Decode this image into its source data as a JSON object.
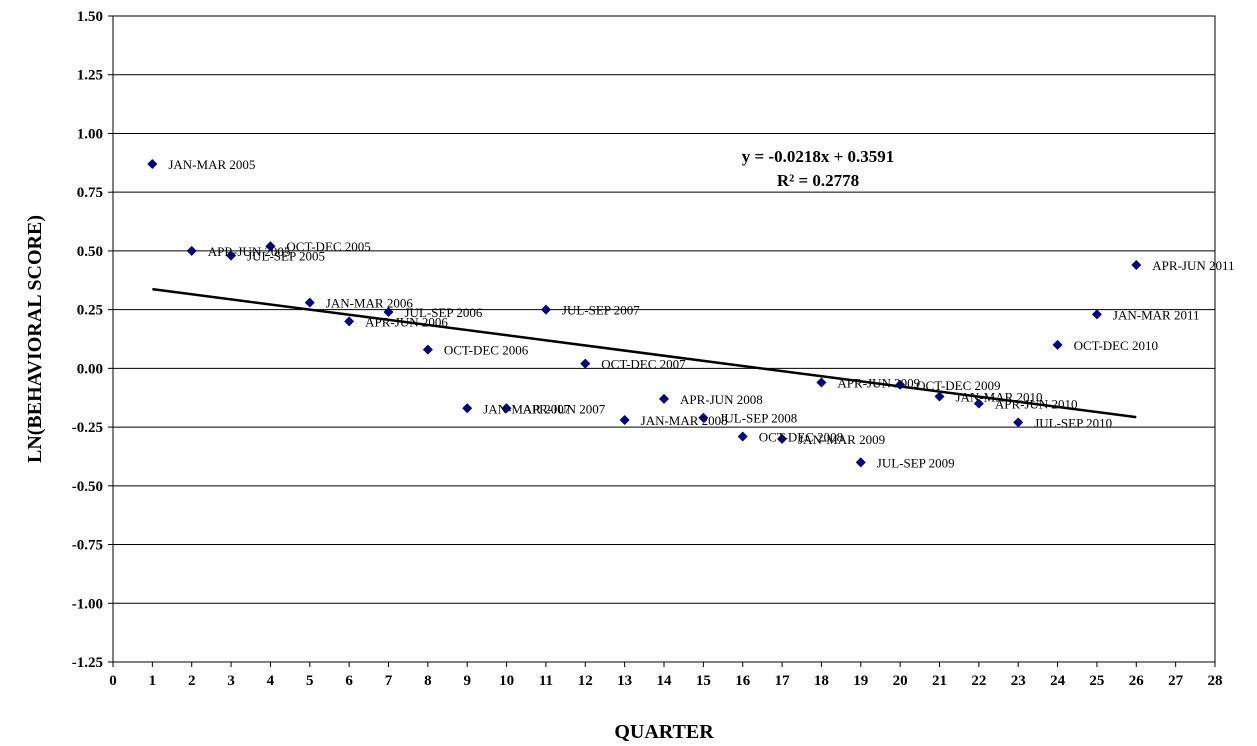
{
  "chart_data": {
    "type": "scatter",
    "xlabel": "QUARTER",
    "ylabel": "LN(BEHAVIORAL SCORE)",
    "xlim": [
      0,
      28
    ],
    "ylim": [
      -1.25,
      1.5
    ],
    "x_ticks": [
      "0",
      "1",
      "2",
      "3",
      "4",
      "5",
      "6",
      "7",
      "8",
      "9",
      "10",
      "11",
      "12",
      "13",
      "14",
      "15",
      "16",
      "17",
      "18",
      "19",
      "20",
      "21",
      "22",
      "23",
      "24",
      "25",
      "26",
      "27",
      "28"
    ],
    "y_ticks": [
      "1.50",
      "1.25",
      "1.00",
      "0.75",
      "0.50",
      "0.25",
      "0.00",
      "-0.25",
      "-0.50",
      "-0.75",
      "-1.00",
      "-1.25"
    ],
    "grid": "horizontal",
    "marker_color": "#000080",
    "points": [
      {
        "x": 1,
        "y": 0.87,
        "label": "JAN-MAR 2005"
      },
      {
        "x": 2,
        "y": 0.5,
        "label": "APR-JUN 2005"
      },
      {
        "x": 3,
        "y": 0.48,
        "label": "JUL-SEP 2005"
      },
      {
        "x": 4,
        "y": 0.52,
        "label": "OCT-DEC 2005"
      },
      {
        "x": 5,
        "y": 0.28,
        "label": "JAN-MAR 2006"
      },
      {
        "x": 6,
        "y": 0.2,
        "label": "APR-JUN 2006"
      },
      {
        "x": 7,
        "y": 0.24,
        "label": "JUL-SEP 2006"
      },
      {
        "x": 8,
        "y": 0.08,
        "label": "OCT-DEC 2006"
      },
      {
        "x": 9,
        "y": -0.17,
        "label": "JAN-MAR 2007"
      },
      {
        "x": 10,
        "y": -0.17,
        "label": "APR-JUN 2007"
      },
      {
        "x": 11,
        "y": 0.25,
        "label": "JUL-SEP 2007"
      },
      {
        "x": 12,
        "y": 0.02,
        "label": "OCT-DEC 2007"
      },
      {
        "x": 13,
        "y": -0.22,
        "label": "JAN-MAR 2008"
      },
      {
        "x": 14,
        "y": -0.13,
        "label": "APR-JUN 2008"
      },
      {
        "x": 15,
        "y": -0.21,
        "label": "JUL-SEP 2008"
      },
      {
        "x": 16,
        "y": -0.29,
        "label": "OCT-DEC 2008"
      },
      {
        "x": 17,
        "y": -0.3,
        "label": "JAN-MAR 2009"
      },
      {
        "x": 18,
        "y": -0.06,
        "label": "APR-JUN 2009"
      },
      {
        "x": 19,
        "y": -0.4,
        "label": "JUL-SEP 2009"
      },
      {
        "x": 20,
        "y": -0.07,
        "label": "OCT-DEC 2009"
      },
      {
        "x": 21,
        "y": -0.12,
        "label": "JAN-MAR 2010"
      },
      {
        "x": 22,
        "y": -0.15,
        "label": "APR-JUN 2010"
      },
      {
        "x": 23,
        "y": -0.23,
        "label": "JUL-SEP 2010"
      },
      {
        "x": 24,
        "y": 0.1,
        "label": "OCT-DEC 2010"
      },
      {
        "x": 25,
        "y": 0.23,
        "label": "JAN-MAR 2011"
      },
      {
        "x": 26,
        "y": 0.44,
        "label": "APR-JUN 2011"
      }
    ],
    "trendline": {
      "slope": -0.0218,
      "intercept": 0.3591,
      "x_range": [
        1,
        26
      ],
      "equation": "y = -0.0218x + 0.3591",
      "r_squared": "R² = 0.2778"
    }
  }
}
